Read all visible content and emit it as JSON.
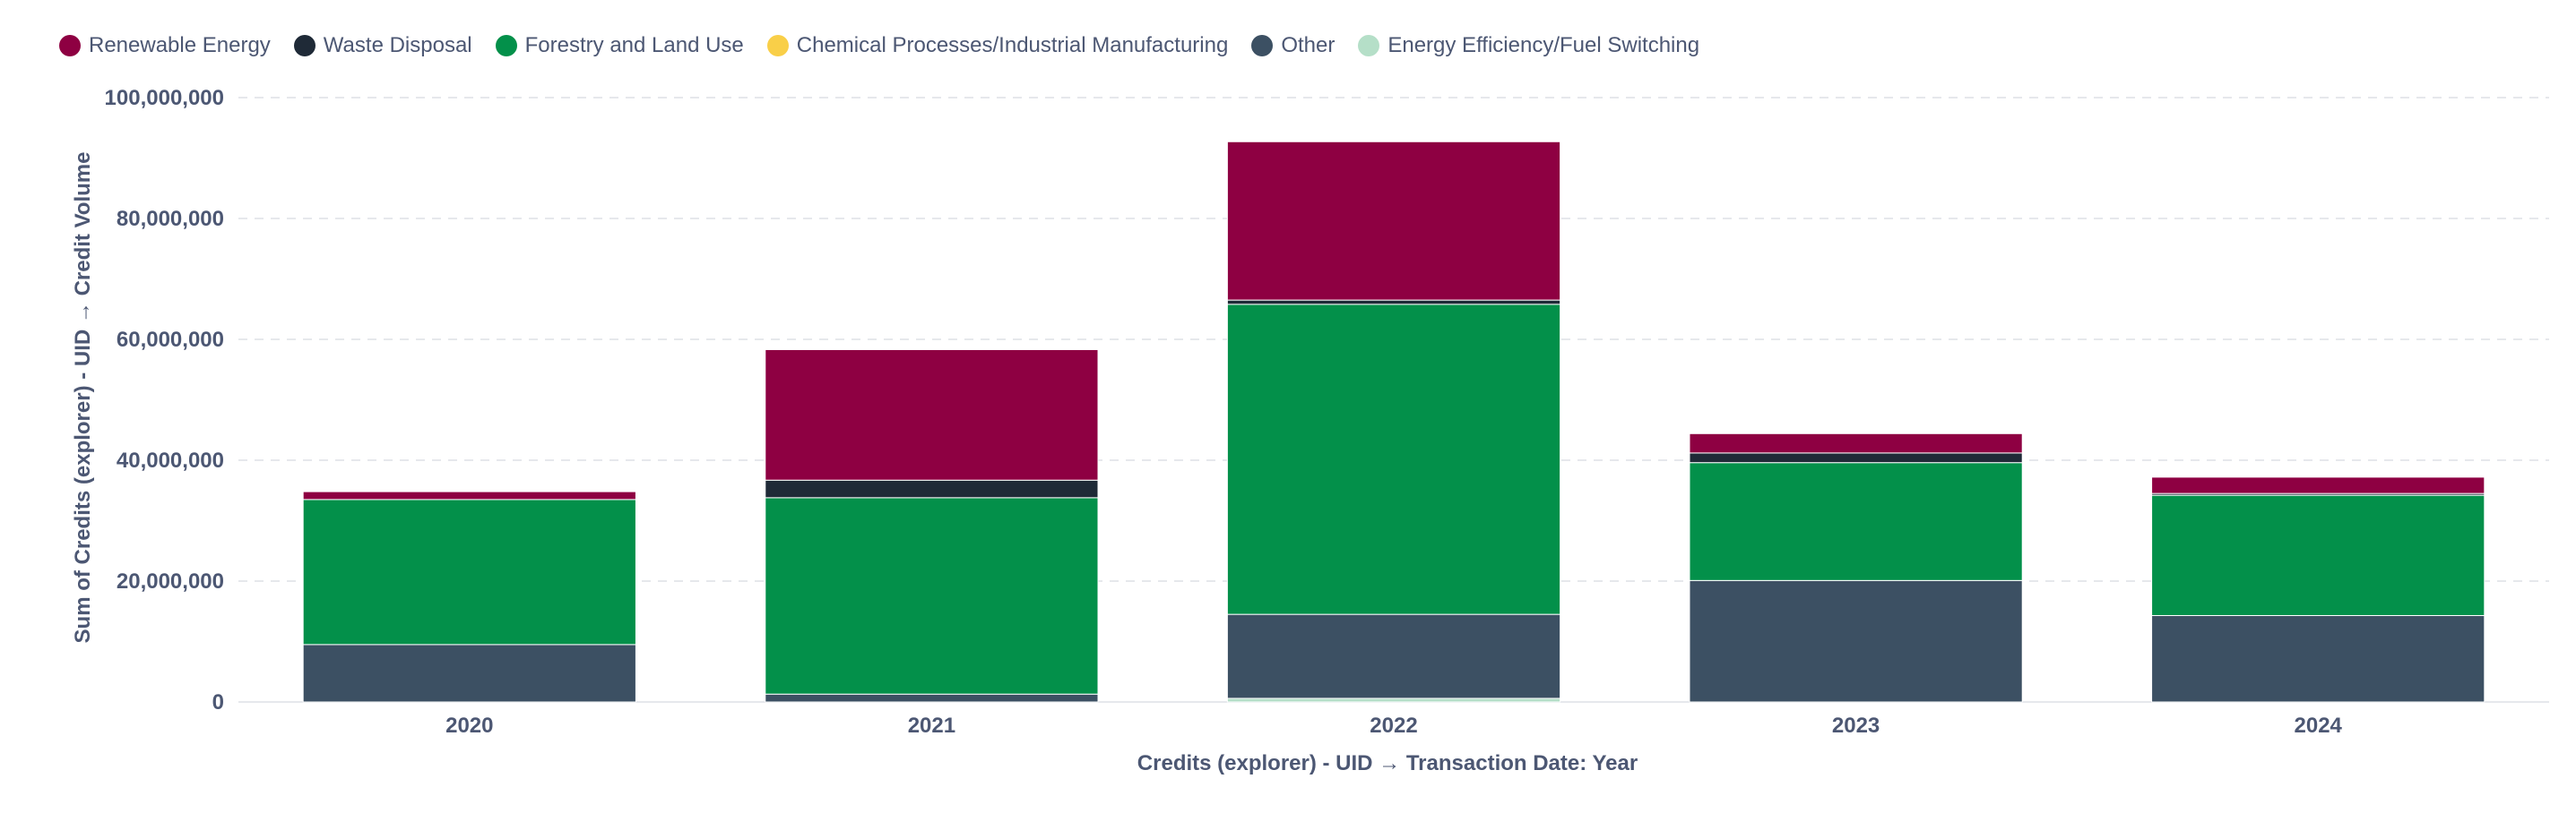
{
  "chart_data": {
    "type": "bar",
    "stacked": true,
    "categories": [
      "2020",
      "2021",
      "2022",
      "2023",
      "2024"
    ],
    "series": [
      {
        "name": "Energy Efficiency/Fuel Switching",
        "color": "#b5dfc8",
        "values": [
          0,
          0,
          600000,
          0,
          0
        ]
      },
      {
        "name": "Other",
        "color": "#3c5063",
        "values": [
          9500000,
          1300000,
          13900000,
          20100000,
          14300000
        ]
      },
      {
        "name": "Chemical Processes/Industrial Manufacturing",
        "color": "#f9cf48",
        "values": [
          0,
          0,
          0,
          0,
          0
        ]
      },
      {
        "name": "Forestry and Land Use",
        "color": "#03904a",
        "values": [
          24000000,
          32500000,
          51300000,
          19500000,
          19900000
        ]
      },
      {
        "name": "Waste Disposal",
        "color": "#1f2a37",
        "values": [
          0,
          2900000,
          700000,
          1600000,
          300000
        ]
      },
      {
        "name": "Renewable Energy",
        "color": "#8e0042",
        "values": [
          1300000,
          21600000,
          26200000,
          3200000,
          2700000
        ]
      }
    ],
    "legend_order": [
      "Renewable Energy",
      "Waste Disposal",
      "Forestry and Land Use",
      "Chemical Processes/Industrial Manufacturing",
      "Other",
      "Energy Efficiency/Fuel Switching"
    ],
    "ylim": [
      0,
      100000000
    ],
    "yticks": [
      0,
      20000000,
      40000000,
      60000000,
      80000000,
      100000000
    ],
    "ytick_labels": [
      "0",
      "20,000,000",
      "40,000,000",
      "60,000,000",
      "80,000,000",
      "100,000,000"
    ],
    "xlabel": "Credits (explorer) - UID → Transaction Date: Year",
    "ylabel": "Sum of Credits (explorer) - UID → Credit Volume",
    "grid": true,
    "legend_position": "top-left"
  }
}
